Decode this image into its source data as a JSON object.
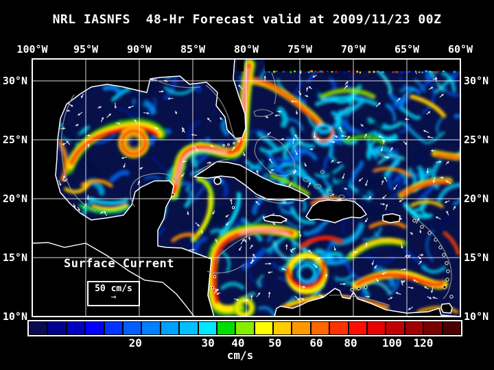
{
  "title": "NRL IASNFS  48-Hr Forecast valid at 2009/11/23 00Z",
  "axes": {
    "lon_labels": [
      "100°W",
      "95°W",
      "90°W",
      "85°W",
      "80°W",
      "75°W",
      "70°W",
      "65°W",
      "60°W"
    ],
    "lat_labels": [
      "30°N",
      "25°N",
      "20°N",
      "15°N",
      "10°N"
    ]
  },
  "legend": {
    "label": "Surface Current",
    "scale_value": "50 cm/s",
    "arrow_glyph": "→"
  },
  "colorbar": {
    "units": "cm/s",
    "ticks": [
      {
        "label": "20",
        "pct": 24.8
      },
      {
        "label": "30",
        "pct": 41.5
      },
      {
        "label": "40",
        "pct": 48.4
      },
      {
        "label": "50",
        "pct": 56.9
      },
      {
        "label": "60",
        "pct": 66.4
      },
      {
        "label": "80",
        "pct": 74.3
      },
      {
        "label": "100",
        "pct": 83.8
      },
      {
        "label": "120",
        "pct": 91.0
      }
    ],
    "segment_colors": [
      "#0a0a50",
      "#00008f",
      "#0000c0",
      "#0000ff",
      "#0033ff",
      "#0060ff",
      "#0080ff",
      "#00a0ff",
      "#00c0ff",
      "#00e8ff",
      "#00dd00",
      "#88ee00",
      "#ffff00",
      "#ffcc00",
      "#ff9900",
      "#ff6600",
      "#ff3300",
      "#ff0f00",
      "#e60000",
      "#c30000",
      "#a00000",
      "#7a0000",
      "#4a0000"
    ]
  },
  "colors": {
    "background": "#000000",
    "ocean": "#071048",
    "coastline": "#ffffff",
    "grid": "#ffffff",
    "bathymetry_contour": "#9aa0a0",
    "text": "#ffffff"
  }
}
